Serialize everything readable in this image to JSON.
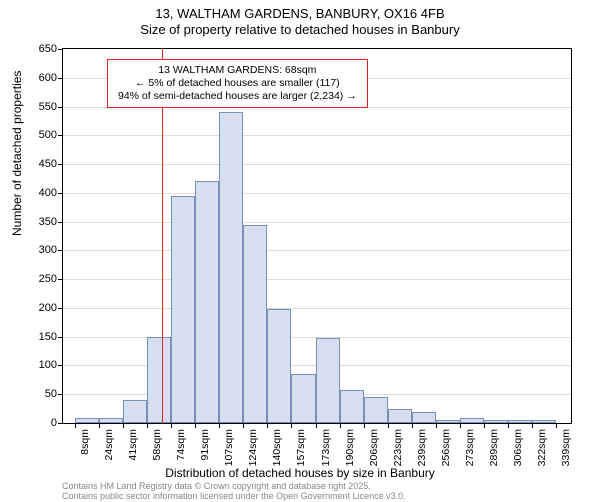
{
  "title": {
    "line1": "13, WALTHAM GARDENS, BANBURY, OX16 4FB",
    "line2": "Size of property relative to detached houses in Banbury"
  },
  "annotation": {
    "line1": "13 WALTHAM GARDENS: 68sqm",
    "line2": "← 5% of detached houses are smaller (117)",
    "line3": "94% of semi-detached houses are larger (2,234) →"
  },
  "histogram": {
    "type": "histogram",
    "bar_fill": "#d6deef",
    "bar_border": "#7a8fb8",
    "background_color": "#ffffff",
    "grid_color": "#dddddd",
    "axis_color": "#000000",
    "ref_line_color": "#d22",
    "ref_line_x_value": 68,
    "ylabel": "Number of detached properties",
    "xlabel": "Distribution of detached houses by size in Banbury",
    "ylim": [
      0,
      650
    ],
    "ytick_step": 50,
    "x_min": 0,
    "x_max": 348,
    "bin_width": 16.5,
    "bins_start_at": 8,
    "values": [
      8,
      8,
      40,
      150,
      395,
      420,
      540,
      345,
      198,
      85,
      148,
      58,
      45,
      25,
      20,
      6,
      8,
      6,
      5,
      5
    ],
    "xtick_labels": [
      "8sqm",
      "24sqm",
      "41sqm",
      "58sqm",
      "74sqm",
      "91sqm",
      "107sqm",
      "124sqm",
      "140sqm",
      "157sqm",
      "173sqm",
      "190sqm",
      "206sqm",
      "223sqm",
      "239sqm",
      "256sqm",
      "273sqm",
      "289sqm",
      "306sqm",
      "322sqm",
      "339sqm"
    ],
    "label_fontsize": 12,
    "tick_fontsize": 11,
    "annotation_fontsize": 10.5
  },
  "footer": {
    "line1": "Contains HM Land Registry data © Crown copyright and database right 2025.",
    "line2": "Contains public sector information licensed under the Open Government Licence v3.0."
  }
}
